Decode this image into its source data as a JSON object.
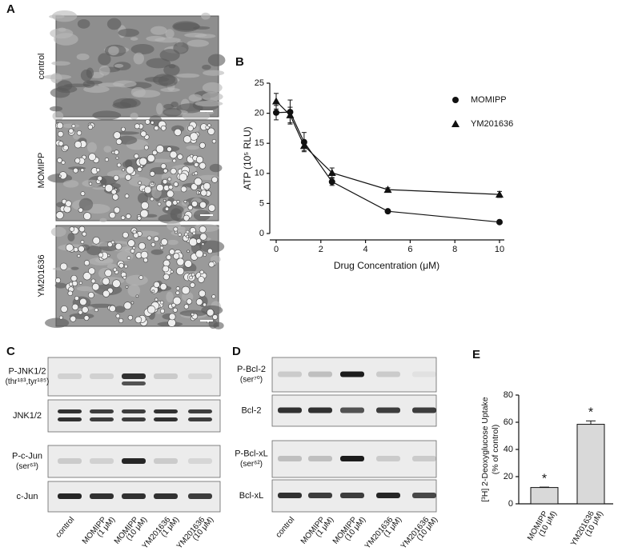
{
  "panel_labels": [
    "A",
    "B",
    "C",
    "D",
    "E"
  ],
  "micrographs": [
    "control",
    "MOMIPP",
    "YM201636"
  ],
  "blots_c": {
    "rows": [
      [
        "P-JNK1/2",
        "(thr¹⁸³,tyr¹⁸⁵)"
      ],
      [
        "JNK1/2"
      ],
      [
        "P-c-Jun",
        "(ser⁶³)"
      ],
      [
        "c-Jun"
      ]
    ],
    "lanes": [
      [
        "control"
      ],
      [
        "MOMIPP",
        "(1 μM)"
      ],
      [
        "MOMIPP",
        "(10 μM)"
      ],
      [
        "YM201636",
        "(1 μM)"
      ],
      [
        "YM201636",
        "(10 μM)"
      ]
    ]
  },
  "blots_d": {
    "rows": [
      [
        "P-Bcl-2",
        "(ser⁷⁰)"
      ],
      [
        "Bcl-2"
      ],
      [
        "P-Bcl-xL",
        "(ser⁶²)"
      ],
      [
        "Bcl-xL"
      ]
    ],
    "lanes": [
      [
        "control"
      ],
      [
        "MOMIPP",
        "(1 μM)"
      ],
      [
        "MOMIPP",
        "(10 μM)"
      ],
      [
        "YM201636",
        "(1 μM)"
      ],
      [
        "YM201636",
        "(10 μM)"
      ]
    ]
  },
  "chart_data": [
    {
      "type": "line",
      "xlabel": "Drug Concentration (μM)",
      "ylabel": "ATP (10⁵ RLU)",
      "x": [
        0,
        0.625,
        1.25,
        2.5,
        5,
        10
      ],
      "series": [
        {
          "name": "MOMIPP",
          "color": "#111111",
          "marker": "circle",
          "values": [
            20.1,
            20.2,
            15.2,
            8.6,
            3.7,
            1.9
          ],
          "errors": [
            1.2,
            2.0,
            1.6,
            0.6,
            0.2,
            0.2
          ]
        },
        {
          "name": "YM201636",
          "color": "#111111",
          "marker": "triangle",
          "values": [
            22.0,
            19.7,
            14.6,
            10.1,
            7.3,
            6.5
          ],
          "errors": [
            1.3,
            1.3,
            0.8,
            0.8,
            0.3,
            0.5
          ]
        }
      ],
      "xlim": [
        0,
        10
      ],
      "xticks": [
        0,
        2,
        4,
        6,
        8,
        10
      ],
      "ylim": [
        0,
        25
      ],
      "yticks": [
        0,
        5,
        10,
        15,
        20,
        25
      ],
      "legend": "upper right"
    },
    {
      "type": "bar",
      "ylabel": [
        "[³H] 2-Deoxyglucose Uptake",
        "(% of control)"
      ],
      "categories": [
        [
          "MOMIPP",
          "(10 μM)"
        ],
        [
          "YM201636",
          "(10 μM)"
        ]
      ],
      "values": [
        12,
        58.5
      ],
      "errors": [
        0.3,
        2.5
      ],
      "annotations": [
        "*",
        "*"
      ],
      "color": "#d9d9d9",
      "ylim": [
        0,
        80
      ],
      "yticks": [
        0,
        20,
        40,
        60,
        80
      ]
    }
  ]
}
